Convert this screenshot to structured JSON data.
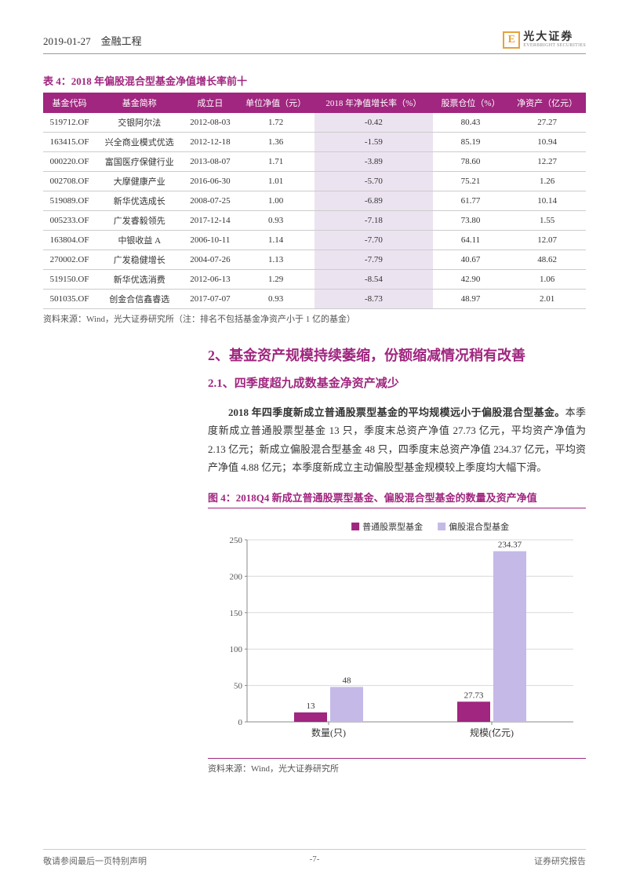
{
  "header": {
    "date": "2019-01-27",
    "category": "金融工程"
  },
  "logo": {
    "cn": "光大证券",
    "en": "EVERBRIGHT SECURITIES",
    "mark": "E"
  },
  "table4": {
    "title": "表 4：2018 年偏股混合型基金净值增长率前十",
    "columns": [
      "基金代码",
      "基金简称",
      "成立日",
      "单位净值（元）",
      "2018 年净值增长率（%）",
      "股票仓位（%）",
      "净资产（亿元）"
    ],
    "highlight_col_index": 4,
    "rows": [
      [
        "519712.OF",
        "交银阿尔法",
        "2012-08-03",
        "1.72",
        "-0.42",
        "80.43",
        "27.27"
      ],
      [
        "163415.OF",
        "兴全商业模式优选",
        "2012-12-18",
        "1.36",
        "-1.59",
        "85.19",
        "10.94"
      ],
      [
        "000220.OF",
        "富国医疗保健行业",
        "2013-08-07",
        "1.71",
        "-3.89",
        "78.60",
        "12.27"
      ],
      [
        "002708.OF",
        "大摩健康产业",
        "2016-06-30",
        "1.01",
        "-5.70",
        "75.21",
        "1.26"
      ],
      [
        "519089.OF",
        "新华优选成长",
        "2008-07-25",
        "1.00",
        "-6.89",
        "61.77",
        "10.14"
      ],
      [
        "005233.OF",
        "广发睿毅领先",
        "2017-12-14",
        "0.93",
        "-7.18",
        "73.80",
        "1.55"
      ],
      [
        "163804.OF",
        "中银收益 A",
        "2006-10-11",
        "1.14",
        "-7.70",
        "64.11",
        "12.07"
      ],
      [
        "270002.OF",
        "广发稳健增长",
        "2004-07-26",
        "1.13",
        "-7.79",
        "40.67",
        "48.62"
      ],
      [
        "519150.OF",
        "新华优选消费",
        "2012-06-13",
        "1.29",
        "-8.54",
        "42.90",
        "1.06"
      ],
      [
        "501035.OF",
        "创金合信鑫睿选",
        "2017-07-07",
        "0.93",
        "-8.73",
        "48.97",
        "2.01"
      ]
    ],
    "note": "资料来源：Wind，光大证券研究所（注：排名不包括基金净资产小于 1 亿的基金）"
  },
  "section2": {
    "h2": "2、基金资产规模持续萎缩，份额缩减情况稍有改善",
    "h3": "2.1、四季度超九成数基金净资产减少",
    "para_bold": "2018 年四季度新成立普通股票型基金的平均规模远小于偏股混合型基金。",
    "para_rest": "本季度新成立普通股票型基金 13 只，季度末总资产净值 27.73 亿元，平均资产净值为 2.13 亿元；新成立偏股混合型基金 48 只，四季度末总资产净值 234.37 亿元，平均资产净值 4.88 亿元；本季度新成立主动偏股型基金规模较上季度均大幅下滑。"
  },
  "chart4": {
    "title": "图 4：2018Q4 新成立普通股票型基金、偏股混合型基金的数量及资产净值",
    "type": "bar",
    "legend": [
      {
        "label": "普通股票型基金",
        "color": "#a0267f"
      },
      {
        "label": "偏股混合型基金",
        "color": "#c5b9e8"
      }
    ],
    "categories": [
      "数量(只)",
      "规模(亿元)"
    ],
    "series": [
      {
        "name": "普通股票型基金",
        "color": "#a0267f",
        "values": [
          13,
          27.73
        ]
      },
      {
        "name": "偏股混合型基金",
        "color": "#c5b9e8",
        "values": [
          48,
          234.37
        ]
      }
    ],
    "ylim": [
      0,
      250
    ],
    "ytick_step": 50,
    "bar_labels": [
      [
        "13",
        "48"
      ],
      [
        "27.73",
        "234.37"
      ]
    ],
    "grid_color": "#d9d9d9",
    "axis_color": "#888888",
    "label_fontsize": 11,
    "note": "资料来源：Wind，光大证券研究所"
  },
  "footer": {
    "left": "敬请参阅最后一页特别声明",
    "center": "-7-",
    "right": "证券研究报告"
  }
}
